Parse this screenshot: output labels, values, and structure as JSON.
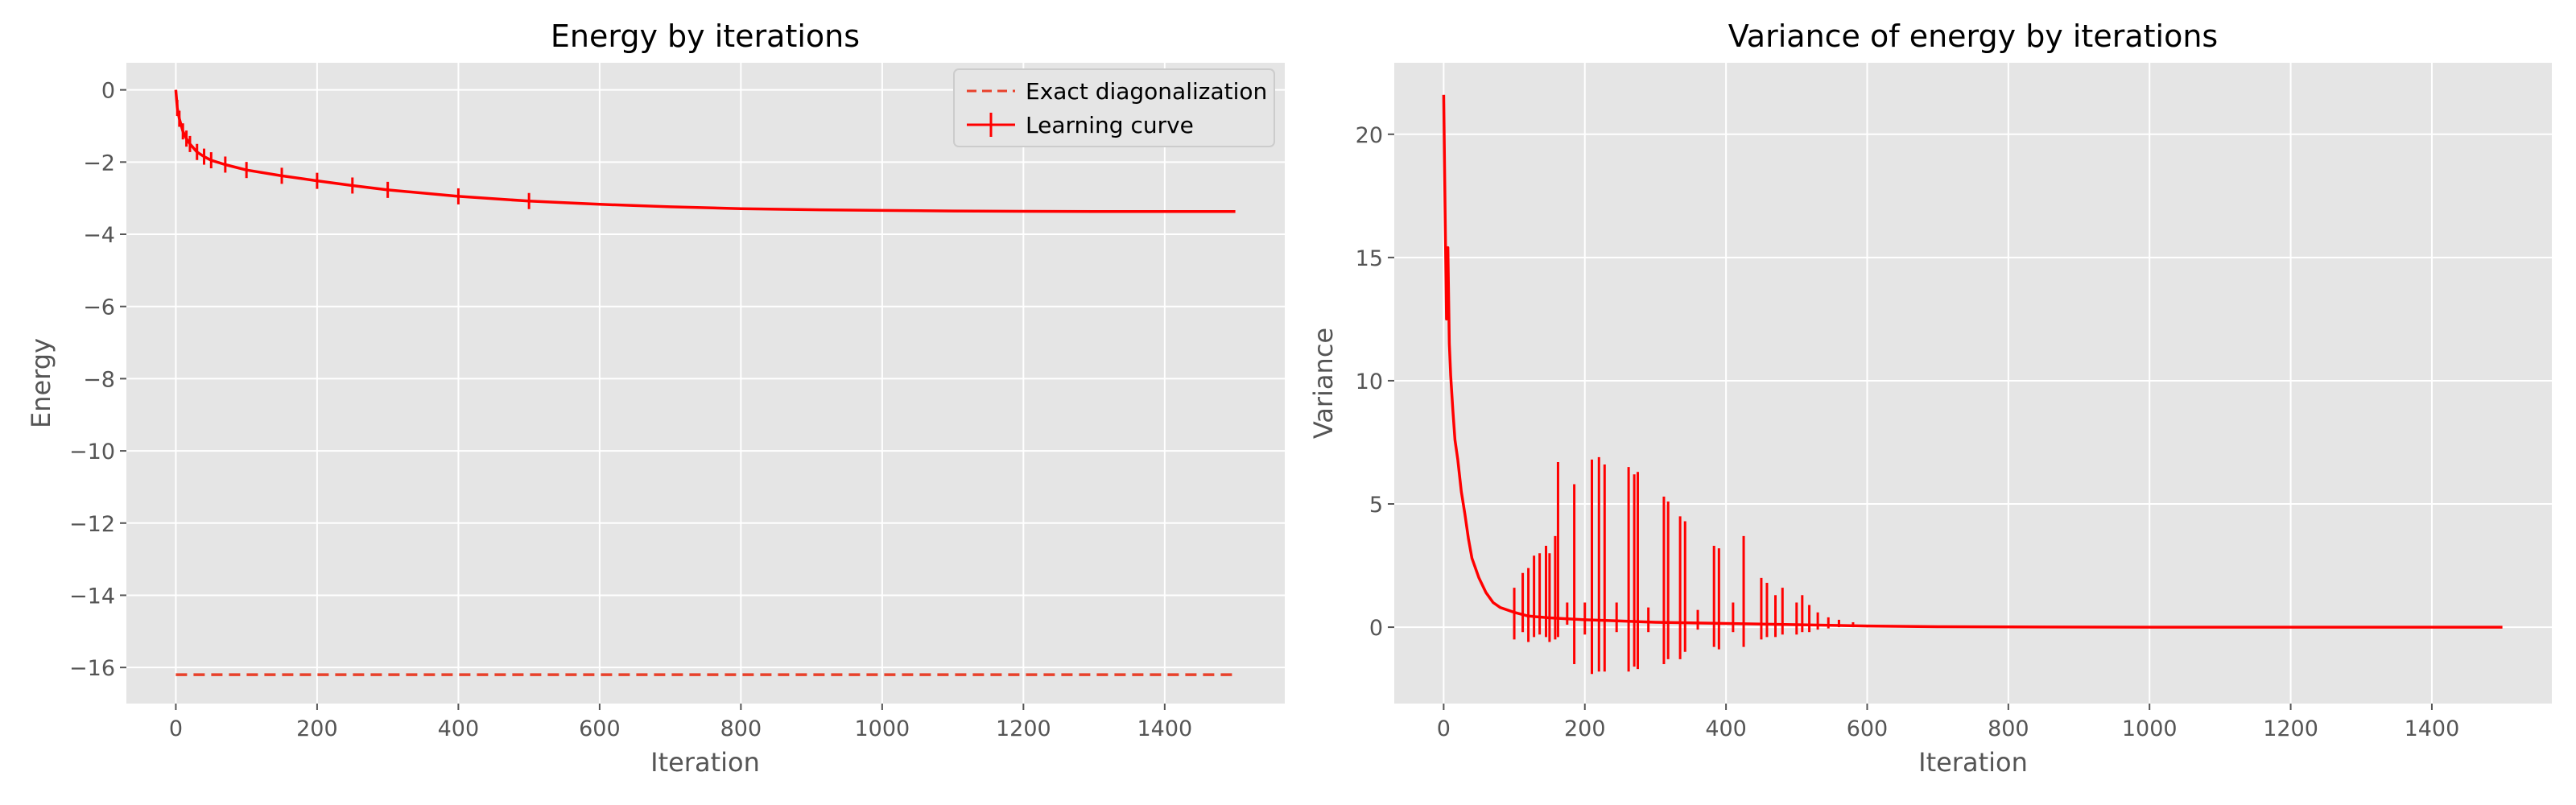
{
  "colors": {
    "background": "#e5e5e5",
    "grid": "#ffffff",
    "line": "#ff0000",
    "exact": "#e8412b"
  },
  "chart_data": [
    {
      "type": "line",
      "title": "Energy by iterations",
      "xlabel": "Iteration",
      "ylabel": "Energy",
      "xlim": [
        -70,
        1570
      ],
      "ylim": [
        -17,
        0.75
      ],
      "xticks": [
        0,
        200,
        400,
        600,
        800,
        1000,
        1200,
        1400
      ],
      "yticks": [
        0,
        -2,
        -4,
        -6,
        -8,
        -10,
        -12,
        -14,
        -16
      ],
      "ytick_labels": [
        "0",
        "−2",
        "−4",
        "−6",
        "−8",
        "−10",
        "−12",
        "−14",
        "−16"
      ],
      "grid": true,
      "legend": "top-right",
      "series": [
        {
          "name": "Exact diagonalization",
          "style": "dashed",
          "x": [
            0,
            1500
          ],
          "y": [
            -16.2,
            -16.2
          ]
        },
        {
          "name": "Learning curve",
          "style": "solid",
          "error_bars": true,
          "x": [
            0,
            2,
            5,
            10,
            15,
            20,
            30,
            40,
            50,
            70,
            100,
            150,
            200,
            250,
            300,
            400,
            500,
            600,
            700,
            800,
            900,
            1000,
            1100,
            1200,
            1300,
            1400,
            1500
          ],
          "y": [
            0,
            -0.5,
            -0.8,
            -1.15,
            -1.35,
            -1.5,
            -1.72,
            -1.85,
            -1.95,
            -2.07,
            -2.22,
            -2.38,
            -2.52,
            -2.65,
            -2.77,
            -2.95,
            -3.08,
            -3.17,
            -3.24,
            -3.29,
            -3.32,
            -3.34,
            -3.355,
            -3.365,
            -3.37,
            -3.37,
            -3.37
          ]
        }
      ]
    },
    {
      "type": "line",
      "title": "Variance of energy by iterations",
      "xlabel": "Iteration",
      "ylabel": "Variance",
      "xlim": [
        -70,
        1570
      ],
      "ylim": [
        -3.1,
        22.9
      ],
      "xticks": [
        0,
        200,
        400,
        600,
        800,
        1000,
        1200,
        1400
      ],
      "yticks": [
        0,
        5,
        10,
        15,
        20
      ],
      "ytick_labels": [
        "0",
        "5",
        "10",
        "15",
        "20"
      ],
      "grid": true,
      "series": [
        {
          "style": "solid",
          "x": [
            0,
            2,
            4,
            6,
            8,
            10,
            13,
            16,
            20,
            25,
            30,
            35,
            40,
            50,
            60,
            70,
            80,
            100,
            120,
            150,
            200,
            250,
            300,
            400,
            500,
            600,
            700,
            800,
            1000,
            1200,
            1400,
            1500
          ],
          "y": [
            21.6,
            17,
            12.5,
            15.4,
            11.5,
            10.2,
            8.8,
            7.6,
            6.8,
            5.5,
            4.6,
            3.6,
            2.8,
            2.0,
            1.4,
            1.0,
            0.8,
            0.6,
            0.45,
            0.38,
            0.3,
            0.25,
            0.2,
            0.15,
            0.1,
            0.05,
            0.02,
            0.01,
            0,
            0,
            0,
            0
          ],
          "spikes": [
            {
              "x": 100,
              "lo": -0.5,
              "hi": 1.6
            },
            {
              "x": 112,
              "lo": -0.2,
              "hi": 2.2
            },
            {
              "x": 120,
              "lo": -0.6,
              "hi": 2.4
            },
            {
              "x": 128,
              "lo": -0.4,
              "hi": 2.9
            },
            {
              "x": 136,
              "lo": -0.3,
              "hi": 3.0
            },
            {
              "x": 145,
              "lo": -0.4,
              "hi": 3.3
            },
            {
              "x": 150,
              "lo": -0.6,
              "hi": 3.0
            },
            {
              "x": 158,
              "lo": -0.5,
              "hi": 3.7
            },
            {
              "x": 162,
              "lo": -0.4,
              "hi": 6.7
            },
            {
              "x": 175,
              "lo": 0.1,
              "hi": 1.0
            },
            {
              "x": 185,
              "lo": -1.5,
              "hi": 5.8
            },
            {
              "x": 200,
              "lo": -0.3,
              "hi": 1.0
            },
            {
              "x": 210,
              "lo": -1.9,
              "hi": 6.8
            },
            {
              "x": 220,
              "lo": -1.8,
              "hi": 6.9
            },
            {
              "x": 228,
              "lo": -1.8,
              "hi": 6.6
            },
            {
              "x": 245,
              "lo": -0.2,
              "hi": 1.0
            },
            {
              "x": 262,
              "lo": -1.8,
              "hi": 6.5
            },
            {
              "x": 270,
              "lo": -1.6,
              "hi": 6.2
            },
            {
              "x": 275,
              "lo": -1.7,
              "hi": 6.3
            },
            {
              "x": 290,
              "lo": -0.2,
              "hi": 0.8
            },
            {
              "x": 312,
              "lo": -1.5,
              "hi": 5.3
            },
            {
              "x": 318,
              "lo": -1.3,
              "hi": 5.1
            },
            {
              "x": 335,
              "lo": -1.3,
              "hi": 4.5
            },
            {
              "x": 342,
              "lo": -1.0,
              "hi": 4.3
            },
            {
              "x": 360,
              "lo": -0.1,
              "hi": 0.7
            },
            {
              "x": 383,
              "lo": -0.8,
              "hi": 3.3
            },
            {
              "x": 390,
              "lo": -0.9,
              "hi": 3.2
            },
            {
              "x": 410,
              "lo": -0.2,
              "hi": 1.0
            },
            {
              "x": 425,
              "lo": -0.8,
              "hi": 3.7
            },
            {
              "x": 450,
              "lo": -0.5,
              "hi": 2.0
            },
            {
              "x": 458,
              "lo": -0.4,
              "hi": 1.8
            },
            {
              "x": 470,
              "lo": -0.4,
              "hi": 1.3
            },
            {
              "x": 480,
              "lo": -0.3,
              "hi": 1.6
            },
            {
              "x": 500,
              "lo": -0.3,
              "hi": 1.0
            },
            {
              "x": 508,
              "lo": -0.2,
              "hi": 1.3
            },
            {
              "x": 518,
              "lo": -0.2,
              "hi": 0.9
            },
            {
              "x": 530,
              "lo": -0.1,
              "hi": 0.6
            },
            {
              "x": 545,
              "lo": -0.05,
              "hi": 0.4
            },
            {
              "x": 560,
              "lo": 0.0,
              "hi": 0.3
            },
            {
              "x": 580,
              "lo": 0.0,
              "hi": 0.2
            }
          ]
        }
      ]
    }
  ]
}
